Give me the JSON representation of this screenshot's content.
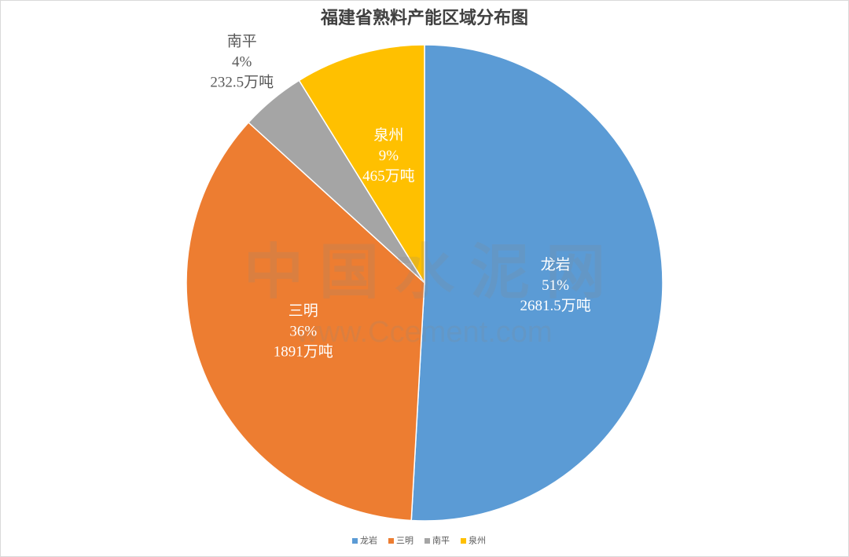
{
  "chart_data": {
    "type": "pie",
    "title": "福建省熟料产能区域分布图",
    "categories": [
      "龙岩",
      "三明",
      "南平",
      "泉州"
    ],
    "values": [
      2681.5,
      1891,
      232.5,
      465
    ],
    "value_labels": [
      "2681.5万吨",
      "1891万吨",
      "232.5万吨",
      "465万吨"
    ],
    "percents": [
      51,
      36,
      4,
      9
    ],
    "percent_labels": [
      "51%",
      "36%",
      "4%",
      "9%"
    ],
    "colors": [
      "#5b9bd5",
      "#ed7d31",
      "#a5a5a5",
      "#ffc000"
    ],
    "legend": "bottom",
    "watermark": {
      "text": "中国水泥网",
      "url": "www.Ccement.com"
    }
  }
}
